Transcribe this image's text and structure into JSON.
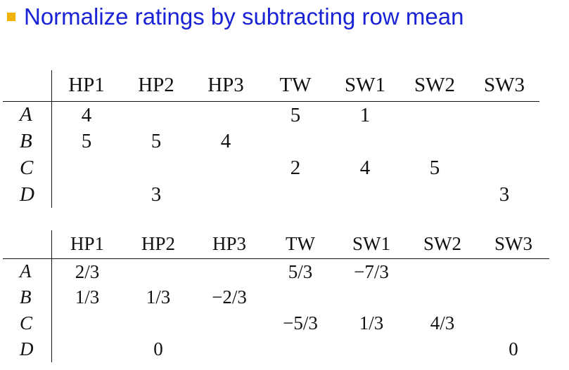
{
  "title": "Normalize ratings by subtracting row mean",
  "tables": [
    {
      "columns": [
        "HP1",
        "HP2",
        "HP3",
        "TW",
        "SW1",
        "SW2",
        "SW3"
      ],
      "rows": [
        {
          "label": "A",
          "cells": [
            "4",
            "",
            "",
            "5",
            "1",
            "",
            ""
          ]
        },
        {
          "label": "B",
          "cells": [
            "5",
            "5",
            "4",
            "",
            "",
            "",
            ""
          ]
        },
        {
          "label": "C",
          "cells": [
            "",
            "",
            "",
            "2",
            "4",
            "5",
            ""
          ]
        },
        {
          "label": "D",
          "cells": [
            "",
            "3",
            "",
            "",
            "",
            "",
            "3"
          ]
        }
      ]
    },
    {
      "columns": [
        "HP1",
        "HP2",
        "HP3",
        "TW",
        "SW1",
        "SW2",
        "SW3"
      ],
      "rows": [
        {
          "label": "A",
          "cells": [
            "2/3",
            "",
            "",
            "5/3",
            "−7/3",
            "",
            ""
          ]
        },
        {
          "label": "B",
          "cells": [
            "1/3",
            "1/3",
            "−2/3",
            "",
            "",
            "",
            ""
          ]
        },
        {
          "label": "C",
          "cells": [
            "",
            "",
            "",
            "−5/3",
            "1/3",
            "4/3",
            ""
          ]
        },
        {
          "label": "D",
          "cells": [
            "",
            "0",
            "",
            "",
            "",
            "",
            "0"
          ]
        }
      ]
    }
  ]
}
